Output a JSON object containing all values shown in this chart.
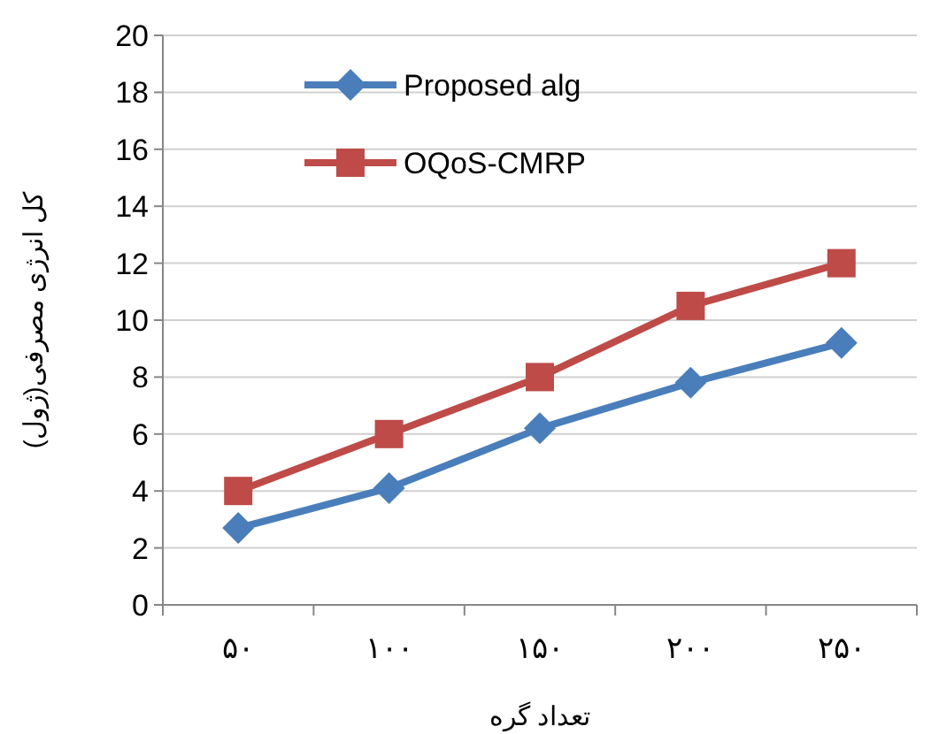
{
  "chart_data": {
    "type": "line",
    "xlabel": "تعداد گره",
    "ylabel": "کل انرژی مصرفی(ژول)",
    "categories": [
      "۵۰",
      "۱۰۰",
      "۱۵۰",
      "۲۰۰",
      "۲۵۰"
    ],
    "series": [
      {
        "name": "Proposed alg",
        "color": "#4a7ebb",
        "marker": "diamond",
        "values": [
          2.7,
          4.1,
          6.2,
          7.8,
          9.2
        ]
      },
      {
        "name": "OQoS-CMRP",
        "color": "#be4b48",
        "marker": "square",
        "values": [
          4,
          6,
          8,
          10.5,
          12
        ]
      }
    ],
    "ylim": [
      0,
      20
    ],
    "yticks": [
      0,
      2,
      4,
      6,
      8,
      10,
      12,
      14,
      16,
      18,
      20
    ],
    "grid": "y",
    "legend": "top left",
    "line_style": "solid"
  }
}
